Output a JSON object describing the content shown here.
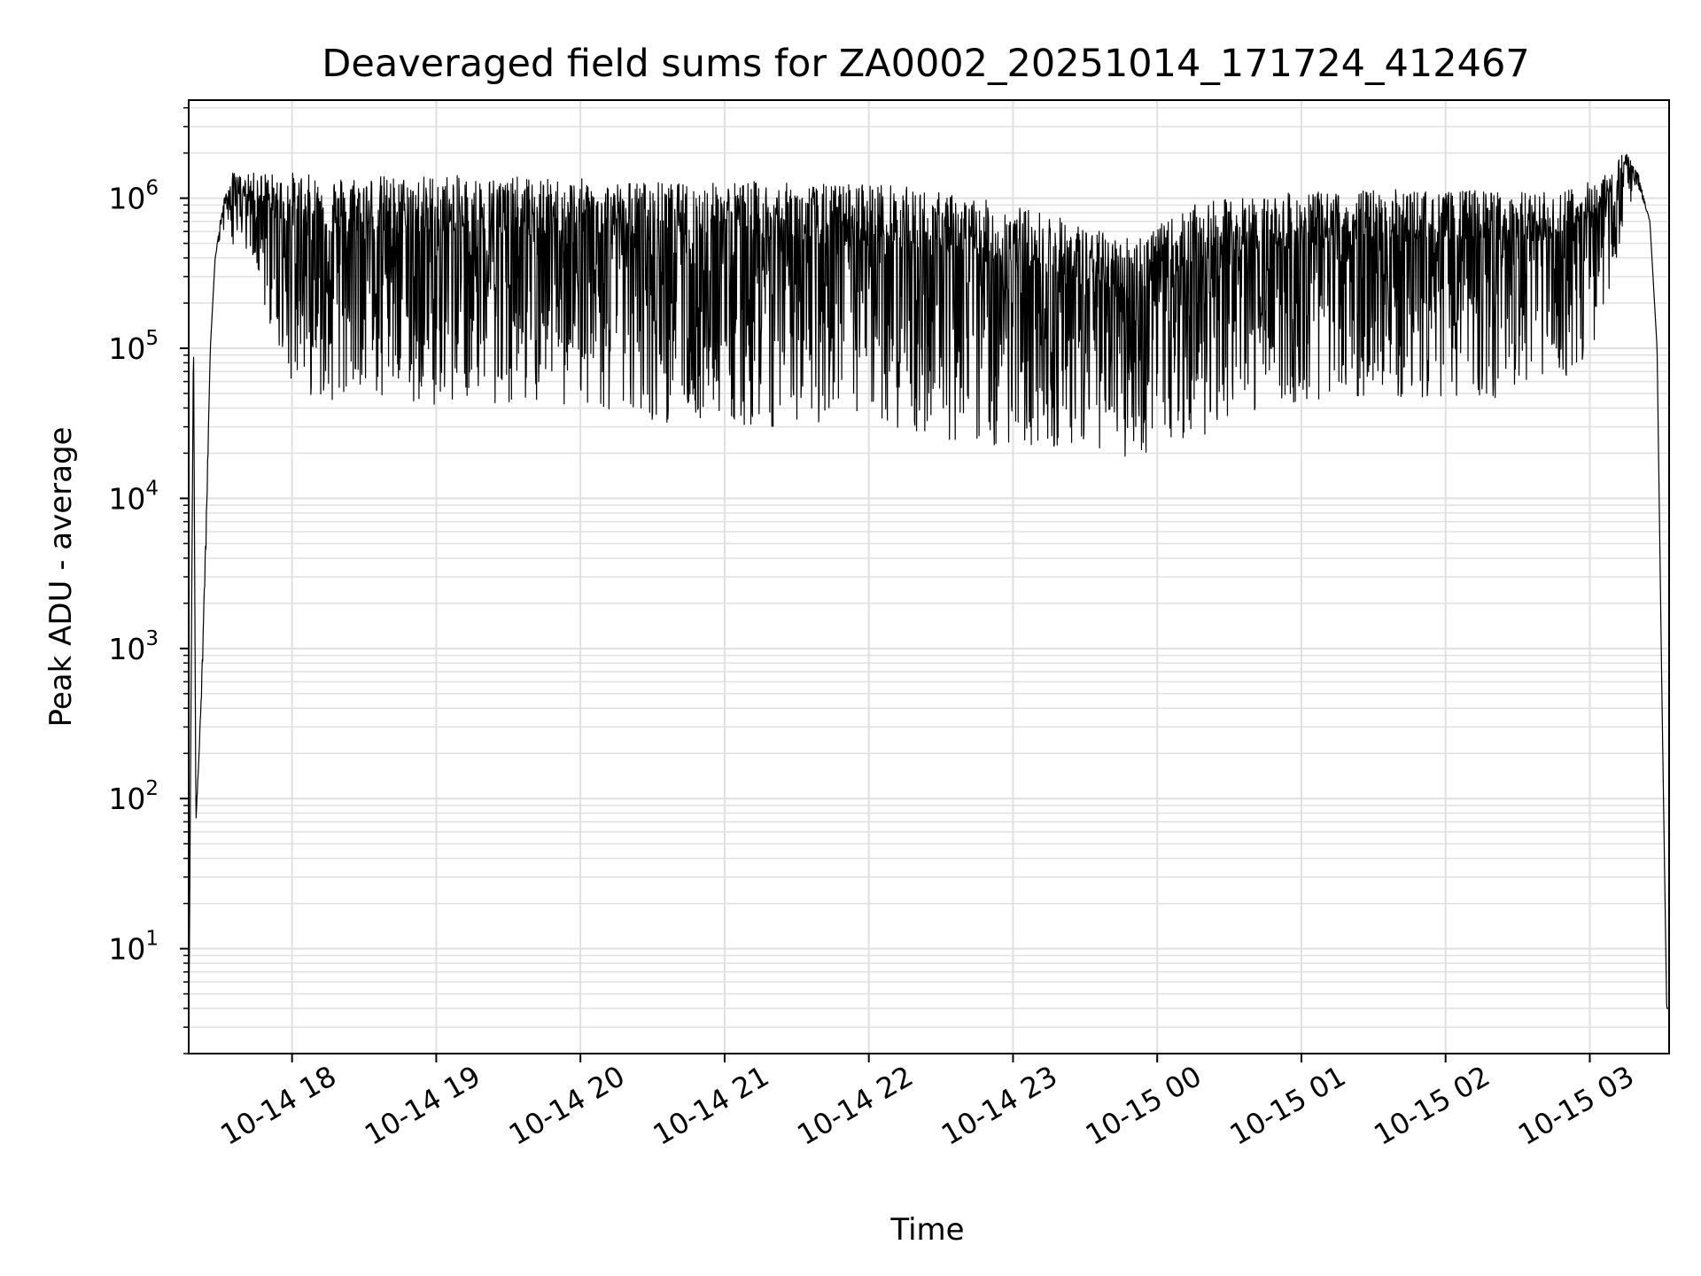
{
  "chart_data": {
    "type": "line",
    "title": "Deaveraged field sums for ZA0002_20251014_171724_412467",
    "xlabel": "Time",
    "ylabel": "Peak ADU - average",
    "yscale": "log",
    "xlim": [
      "2025-10-14 17:17",
      "2025-10-15 03:33"
    ],
    "ylim": [
      2,
      4500000
    ],
    "grid": true,
    "grid_minor": true,
    "line_color": "#000000",
    "grid_color": "#e0e0e0",
    "x_ticks": [
      {
        "value": "2025-10-14 18:00",
        "label": "10-14 18"
      },
      {
        "value": "2025-10-14 19:00",
        "label": "10-14 19"
      },
      {
        "value": "2025-10-14 20:00",
        "label": "10-14 20"
      },
      {
        "value": "2025-10-14 21:00",
        "label": "10-14 21"
      },
      {
        "value": "2025-10-14 22:00",
        "label": "10-14 22"
      },
      {
        "value": "2025-10-14 23:00",
        "label": "10-14 23"
      },
      {
        "value": "2025-10-15 00:00",
        "label": "10-15 00"
      },
      {
        "value": "2025-10-15 01:00",
        "label": "10-15 01"
      },
      {
        "value": "2025-10-15 02:00",
        "label": "10-15 02"
      },
      {
        "value": "2025-10-15 03:00",
        "label": "10-15 03"
      }
    ],
    "y_ticks": [
      {
        "value": 10,
        "base": "10",
        "exp": "1"
      },
      {
        "value": 100,
        "base": "10",
        "exp": "2"
      },
      {
        "value": 1000,
        "base": "10",
        "exp": "3"
      },
      {
        "value": 10000,
        "base": "10",
        "exp": "4"
      },
      {
        "value": 100000,
        "base": "10",
        "exp": "5"
      },
      {
        "value": 1000000,
        "base": "10",
        "exp": "6"
      }
    ],
    "series": [
      {
        "x": [
          "2025-10-14 17:17",
          "2025-10-14 17:19",
          "2025-10-14 17:20",
          "2025-10-14 17:22",
          "2025-10-14 17:24",
          "2025-10-14 17:26",
          "2025-10-14 17:28",
          "2025-10-14 17:31",
          "2025-10-14 17:35",
          "2025-10-14 17:40",
          "2025-10-14 17:45",
          "2025-10-14 17:50",
          "2025-10-14 17:55",
          "2025-10-14 18:00",
          "2025-10-14 18:05",
          "2025-10-14 18:15",
          "2025-10-14 18:30",
          "2025-10-14 18:45",
          "2025-10-14 19:00",
          "2025-10-14 19:15",
          "2025-10-14 19:30",
          "2025-10-14 19:45",
          "2025-10-14 20:00",
          "2025-10-14 20:15",
          "2025-10-14 20:30",
          "2025-10-14 20:45",
          "2025-10-14 21:00",
          "2025-10-14 21:15",
          "2025-10-14 21:30",
          "2025-10-14 21:45",
          "2025-10-14 22:00",
          "2025-10-14 22:15",
          "2025-10-14 22:30",
          "2025-10-14 22:45",
          "2025-10-14 23:00",
          "2025-10-14 23:15",
          "2025-10-14 23:30",
          "2025-10-14 23:45",
          "2025-10-15 00:00",
          "2025-10-15 00:15",
          "2025-10-15 00:30",
          "2025-10-15 00:45",
          "2025-10-15 01:00",
          "2025-10-15 01:15",
          "2025-10-15 01:30",
          "2025-10-15 01:45",
          "2025-10-15 02:00",
          "2025-10-15 02:15",
          "2025-10-15 02:30",
          "2025-10-15 02:45",
          "2025-10-15 03:00",
          "2025-10-15 03:10",
          "2025-10-15 03:15",
          "2025-10-15 03:20",
          "2025-10-15 03:25",
          "2025-10-15 03:28",
          "2025-10-15 03:30",
          "2025-10-15 03:32",
          "2025-10-15 03:33"
        ],
        "y_upper": [
          2,
          130000,
          70,
          400,
          5000,
          100000,
          400000,
          900000,
          1500000,
          1400000,
          1500000,
          1500000,
          1400000,
          1500000,
          1450000,
          1400000,
          1450000,
          1400000,
          1450000,
          1400000,
          1400000,
          1350000,
          1350000,
          1300000,
          1300000,
          1250000,
          1300000,
          1300000,
          1250000,
          1250000,
          1300000,
          1200000,
          1100000,
          1000000,
          900000,
          800000,
          650000,
          550000,
          650000,
          900000,
          1000000,
          1050000,
          1100000,
          1100000,
          1150000,
          1150000,
          1100000,
          1150000,
          1100000,
          1100000,
          1300000,
          1700000,
          2100000,
          1500000,
          700000,
          100000,
          500,
          4,
          4
        ],
        "y_lower": [
          2,
          130000,
          70,
          300,
          3000,
          100000,
          400000,
          600000,
          500000,
          400000,
          300000,
          150000,
          90000,
          60000,
          50000,
          45000,
          45000,
          42000,
          42000,
          45000,
          42000,
          40000,
          40000,
          35000,
          32000,
          32000,
          32000,
          30000,
          30000,
          30000,
          30000,
          27000,
          24000,
          22000,
          22000,
          21000,
          20000,
          19000,
          19000,
          23000,
          33000,
          40000,
          42000,
          45000,
          45000,
          45000,
          48000,
          45000,
          48000,
          55000,
          90000,
          300000,
          800000,
          1200000,
          700000,
          100000,
          500,
          4,
          4
        ]
      }
    ]
  }
}
